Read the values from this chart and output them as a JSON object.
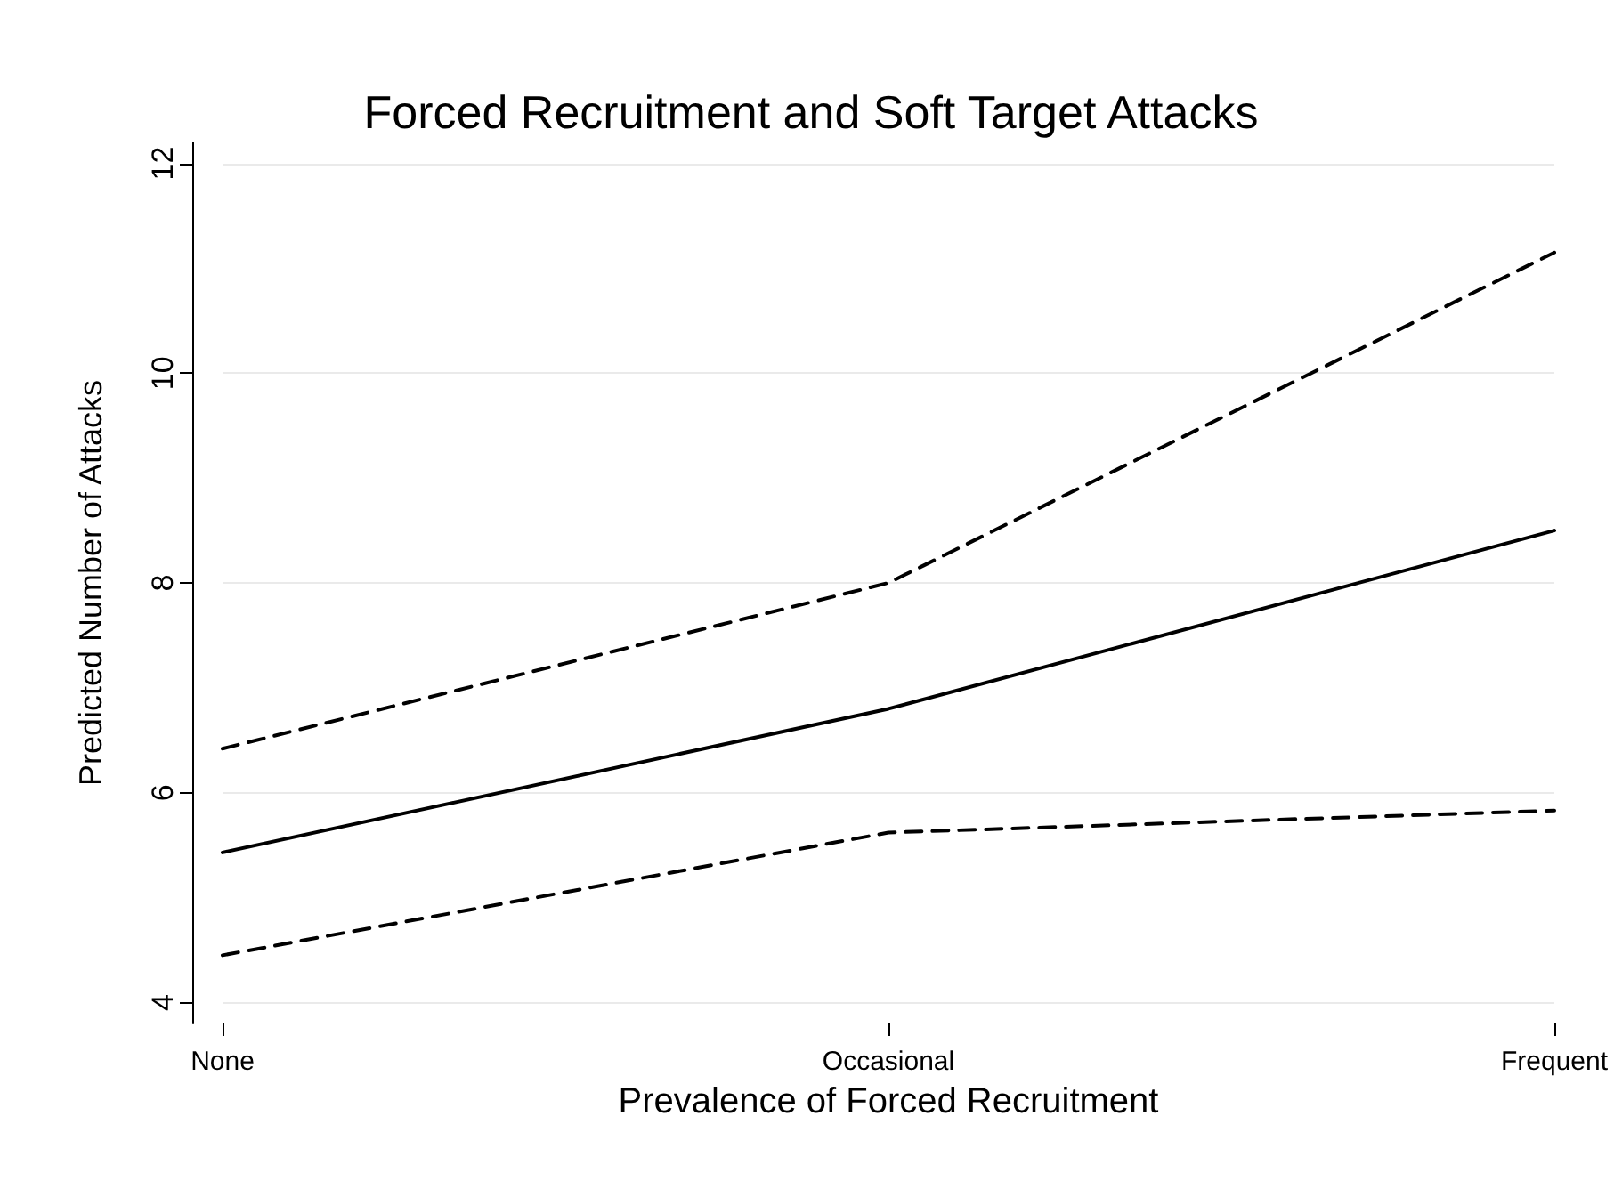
{
  "chart_data": {
    "type": "line",
    "title": "Forced Recruitment and Soft Target Attacks",
    "xlabel": "Prevalence of Forced Recruitment",
    "ylabel": "Predicted Number of Attacks",
    "categories": [
      "None",
      "Occasional",
      "Frequent"
    ],
    "series": [
      {
        "color": "#000000",
        "line_style": "solid",
        "values": [
          5.43,
          6.8,
          8.5
        ]
      },
      {
        "color": "#000000",
        "line_style": "dashed",
        "values": [
          6.42,
          8.0,
          11.15
        ]
      },
      {
        "color": "#000000",
        "line_style": "dashed",
        "values": [
          4.45,
          5.62,
          5.83
        ]
      }
    ],
    "ylim": [
      3.8,
      12.2
    ],
    "yticks": [
      4,
      6,
      8,
      10,
      12
    ],
    "grid": "y",
    "marker": "none"
  }
}
